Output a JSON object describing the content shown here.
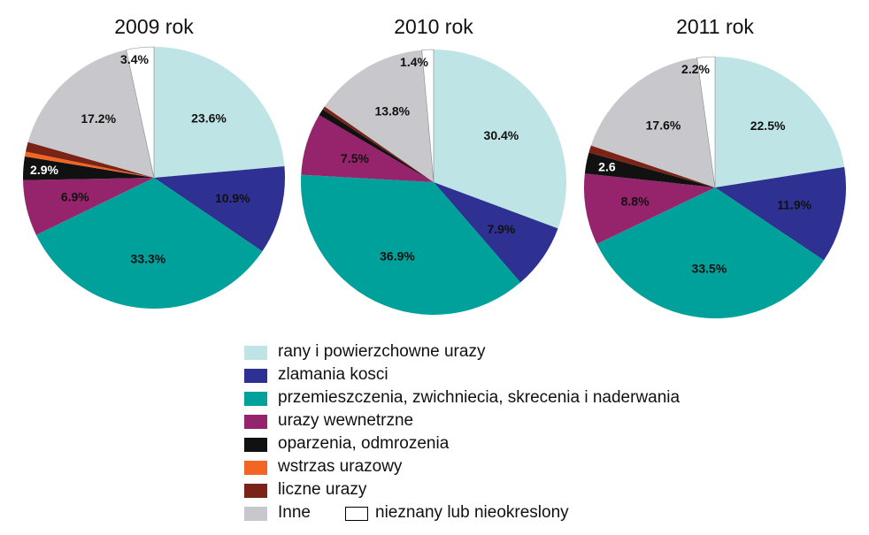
{
  "colors": {
    "rany": "#bfe4e6",
    "zlamania": "#2e3192",
    "przemieszczenia": "#00a19a",
    "wewnetrzne": "#96246c",
    "oparzenia": "#111111",
    "wstrzas": "#f26522",
    "liczne": "#7a2417",
    "inne": "#c8c8cc",
    "nieznany": "#ffffff"
  },
  "legend": [
    {
      "key": "rany",
      "label": "rany i powierzchowne urazy"
    },
    {
      "key": "zlamania",
      "label": "zlamania kosci"
    },
    {
      "key": "przemieszczenia",
      "label": "przemieszczenia, zwichniecia, skrecenia i naderwania"
    },
    {
      "key": "wewnetrzne",
      "label": "urazy wewnetrzne"
    },
    {
      "key": "oparzenia",
      "label": "oparzenia, odmrozenia"
    },
    {
      "key": "wstrzas",
      "label": "wstrzas urazowy"
    },
    {
      "key": "liczne",
      "label": "liczne urazy"
    },
    {
      "key": "inne",
      "label": "Inne"
    },
    {
      "key": "nieznany",
      "label": "nieznany lub nieokreslony"
    }
  ],
  "chart_data": [
    {
      "type": "pie",
      "title": "2009 rok",
      "slices": [
        {
          "key": "rany",
          "value": 23.6,
          "label": "23.6%"
        },
        {
          "key": "zlamania",
          "value": 10.9,
          "label": "10.9%"
        },
        {
          "key": "przemieszczenia",
          "value": 33.3,
          "label": "33.3%"
        },
        {
          "key": "wewnetrzne",
          "value": 6.9,
          "label": "6.9%"
        },
        {
          "key": "oparzenia",
          "value": 2.9,
          "label": "2.9%"
        },
        {
          "key": "wstrzas",
          "value": 0.6,
          "label": ""
        },
        {
          "key": "liczne",
          "value": 1.2,
          "label": ""
        },
        {
          "key": "inne",
          "value": 17.2,
          "label": "17.2%"
        },
        {
          "key": "nieznany",
          "value": 3.4,
          "label": "3.4%"
        }
      ]
    },
    {
      "type": "pie",
      "title": "2010 rok",
      "slices": [
        {
          "key": "rany",
          "value": 30.4,
          "label": "30.4%"
        },
        {
          "key": "zlamania",
          "value": 7.9,
          "label": "7.9%"
        },
        {
          "key": "przemieszczenia",
          "value": 36.9,
          "label": "36.9%"
        },
        {
          "key": "wewnetrzne",
          "value": 7.5,
          "label": "7.5%"
        },
        {
          "key": "oparzenia",
          "value": 0.8,
          "label": ""
        },
        {
          "key": "liczne",
          "value": 0.4,
          "label": ""
        },
        {
          "key": "inne",
          "value": 13.8,
          "label": "13.8%"
        },
        {
          "key": "nieznany",
          "value": 1.4,
          "label": "1.4%"
        }
      ]
    },
    {
      "type": "pie",
      "title": "2011 rok",
      "slices": [
        {
          "key": "rany",
          "value": 22.5,
          "label": "22.5%"
        },
        {
          "key": "zlamania",
          "value": 11.9,
          "label": "11.9%"
        },
        {
          "key": "przemieszczenia",
          "value": 33.5,
          "label": "33.5%"
        },
        {
          "key": "wewnetrzne",
          "value": 8.8,
          "label": "8.8%"
        },
        {
          "key": "oparzenia",
          "value": 2.6,
          "label": "2.6"
        },
        {
          "key": "liczne",
          "value": 0.9,
          "label": ""
        },
        {
          "key": "inne",
          "value": 17.6,
          "label": "17.6%"
        },
        {
          "key": "nieznany",
          "value": 2.2,
          "label": "2.2%"
        }
      ]
    }
  ]
}
